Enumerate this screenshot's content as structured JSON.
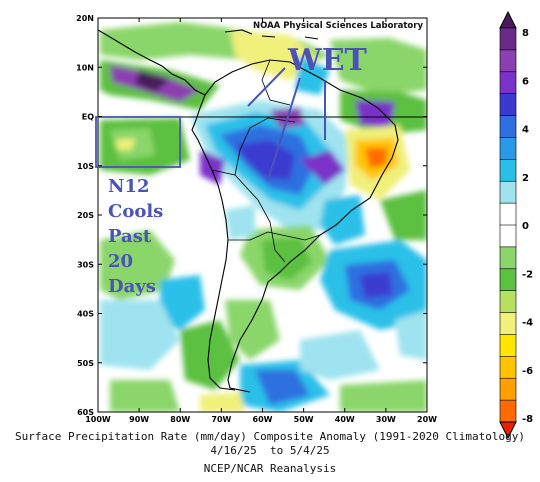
{
  "credit": "NOAA Physical Sciences Laboratory",
  "caption": {
    "line1": "Surface Precipitation Rate (mm/day) Composite Anomaly (1991-2020 Climatology)",
    "line2": "4/16/25  to 5/4/25",
    "line3": "NCEP/NCAR Reanalysis"
  },
  "annotations": {
    "wet": "WET",
    "n12_lines": [
      "N12",
      "Cools",
      "Past",
      "20",
      "Days"
    ]
  },
  "chart_data": {
    "type": "heatmap",
    "title": "Surface Precipitation Rate (mm/day) Composite Anomaly (1991-2020 Climatology)",
    "subtitle": "4/16/25  to 5/4/25",
    "source": "NCEP/NCAR Reanalysis",
    "lon_range": [
      -100,
      -20
    ],
    "lat_range": [
      -60,
      20
    ],
    "x_ticks": [
      "100W",
      "90W",
      "80W",
      "70W",
      "60W",
      "50W",
      "40W",
      "30W",
      "20W"
    ],
    "y_ticks": [
      "20N",
      "10N",
      "EQ",
      "10S",
      "20S",
      "30S",
      "40S",
      "50S",
      "60S"
    ],
    "colorbar": {
      "ticks": [
        "8",
        "6",
        "4",
        "2",
        "0",
        "-2",
        "-4",
        "-6",
        "-8"
      ],
      "colors": [
        "#4a1a5a",
        "#6a2a8a",
        "#8c3fb0",
        "#7a33c8",
        "#3a3ad0",
        "#2f6fe0",
        "#2a9ae8",
        "#2cc0e8",
        "#9ee3ef",
        "#ffffff",
        "#ffffff",
        "#8ad66a",
        "#5cc040",
        "#b8e060",
        "#f0f07a",
        "#ffe600",
        "#ffc400",
        "#ffa000",
        "#ff6a00",
        "#e82000"
      ]
    },
    "annotation_box_lon": [
      -100,
      -80
    ],
    "annotation_box_lat": [
      -10,
      0
    ]
  }
}
